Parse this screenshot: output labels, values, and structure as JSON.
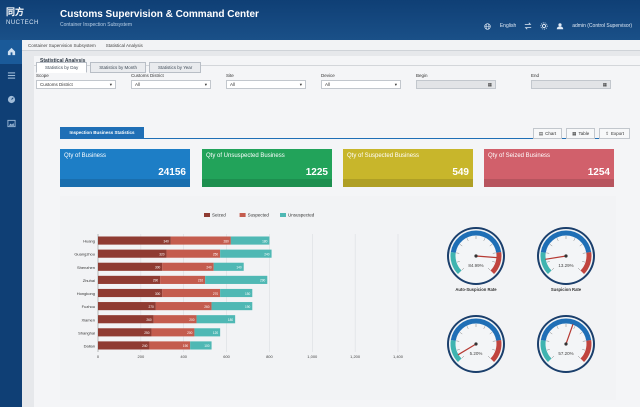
{
  "header": {
    "logo_mark": "同方",
    "brand": "NUCTECH",
    "title": "Customs Supervision & Command Center",
    "subtitle": "Container Inspection Subsystem",
    "language": "English",
    "user": "admin (Control Supervisor)",
    "colors": {
      "bar": "#14477f",
      "accent": "#1f6fb6"
    }
  },
  "sidebar": {
    "items": [
      {
        "icon": "home-icon"
      },
      {
        "icon": "list-icon"
      },
      {
        "icon": "gauge-icon"
      },
      {
        "icon": "image-icon"
      }
    ]
  },
  "breadcrumb": [
    "Container Supervision Subsystem",
    "Statistical Analysis"
  ],
  "panel": {
    "title": "Statistical Analysis"
  },
  "tabs": [
    "Statistics by Day",
    "Statistics by Month",
    "Statistics by Year"
  ],
  "filters": [
    {
      "label": "Scope",
      "value": "Customs District"
    },
    {
      "label": "Customs District",
      "value": "All"
    },
    {
      "label": "Site",
      "value": "All"
    },
    {
      "label": "Device",
      "value": "All"
    },
    {
      "label": "Begin",
      "value": ""
    },
    {
      "label": "End",
      "value": ""
    }
  ],
  "stats_tab": "Inspection Business Statistics",
  "tools": [
    "Chart",
    "Table",
    "Export"
  ],
  "cards": [
    {
      "label": "Qty of Business",
      "value": "24156",
      "color": "#1d7ec6"
    },
    {
      "label": "Qty of Unsuspected Business",
      "value": "1225",
      "color": "#22a35a"
    },
    {
      "label": "Qty of Suspected Business",
      "value": "549",
      "color": "#c8b62b"
    },
    {
      "label": "Qty of Seized Business",
      "value": "1254",
      "color": "#d1606b"
    }
  ],
  "chart_data": [
    {
      "type": "bar",
      "orientation": "horizontal",
      "stacked": true,
      "categories": [
        "Huang",
        "Guangzhou",
        "Shenzhen",
        "Zhuhai",
        "Hongkong",
        "Fuzhou",
        "Xiamen",
        "Shanghai",
        "Dalian"
      ],
      "series": [
        {
          "name": "Seized",
          "color": "#8f3b32",
          "values": [
            340,
            320,
            300,
            290,
            300,
            270,
            260,
            250,
            240
          ]
        },
        {
          "name": "Suspected",
          "color": "#c45c4e",
          "values": [
            280,
            250,
            240,
            210,
            270,
            260,
            200,
            200,
            190
          ]
        },
        {
          "name": "Unsuspected",
          "color": "#4fb8b4",
          "values": [
            180,
            240,
            140,
            290,
            150,
            190,
            180,
            120,
            100
          ]
        }
      ],
      "xlim": [
        0,
        1400
      ],
      "xticks": [
        "0",
        "200",
        "400",
        "600",
        "800",
        "1,000",
        "1,200",
        "1,400"
      ],
      "legend": "top"
    },
    {
      "type": "gauge",
      "gauges": [
        {
          "label": "Auto-Suspicion Rate",
          "value": 84.99,
          "text": "84.99%"
        },
        {
          "label": "Suspicion Rate",
          "value": 13.29,
          "text": "13.29%"
        },
        {
          "label": "",
          "value": 5.2,
          "text": "5.20%"
        },
        {
          "label": "",
          "value": 57.2,
          "text": "57.20%"
        }
      ],
      "range": [
        0,
        100
      ]
    }
  ]
}
